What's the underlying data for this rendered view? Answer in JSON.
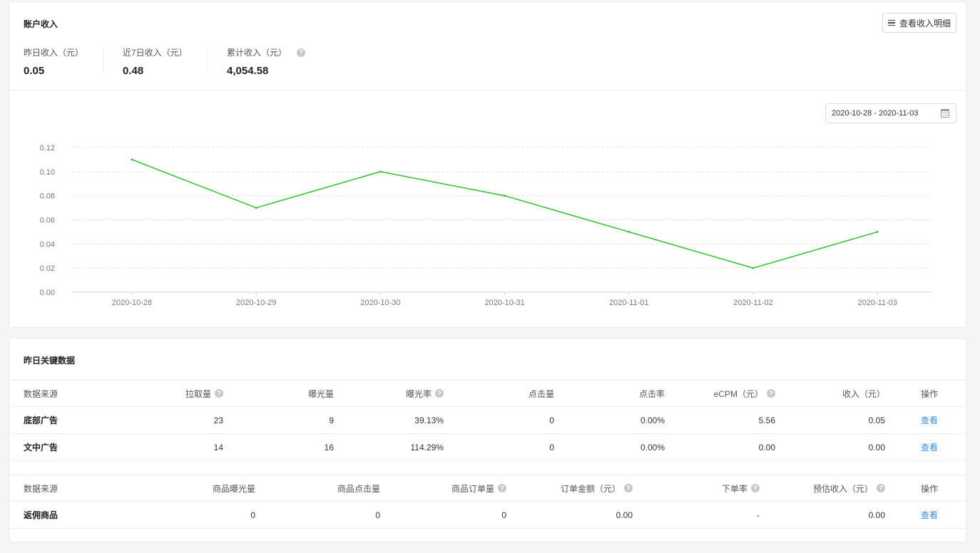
{
  "income": {
    "title": "账户收入",
    "detail_button": "查看收入明细",
    "stats": [
      {
        "label": "昨日收入（元）",
        "value": "0.05"
      },
      {
        "label": "近7日收入（元）",
        "value": "0.48"
      },
      {
        "label": "累计收入（元）",
        "value": "4,054.58"
      }
    ],
    "date_range": "2020-10-28 - 2020-11-03"
  },
  "chart_data": {
    "type": "line",
    "x": [
      "2020-10-28",
      "2020-10-29",
      "2020-10-30",
      "2020-10-31",
      "2020-11-01",
      "2020-11-02",
      "2020-11-03"
    ],
    "series": [
      {
        "values": [
          0.11,
          0.07,
          0.1,
          0.08,
          0.05,
          0.02,
          0.05
        ]
      }
    ],
    "y_ticks": [
      "0.00",
      "0.02",
      "0.04",
      "0.06",
      "0.08",
      "0.10",
      "0.12"
    ],
    "ylim": [
      0,
      0.12
    ],
    "grid": true,
    "color": "#3cc23c"
  },
  "key_data": {
    "title": "昨日关键数据",
    "ad_headers": [
      "数据来源",
      "拉取量",
      "曝光量",
      "曝光率",
      "点击量",
      "点击率",
      "eCPM（元）",
      "收入（元）",
      "操作"
    ],
    "ad_rows": [
      [
        "底部广告",
        "23",
        "9",
        "39.13%",
        "0",
        "0.00%",
        "5.56",
        "0.05",
        "查看"
      ],
      [
        "文中广告",
        "14",
        "16",
        "114.29%",
        "0",
        "0.00%",
        "0.00",
        "0.00",
        "查看"
      ]
    ],
    "goods_headers": [
      "数据来源",
      "商品曝光量",
      "商品点击量",
      "商品订单量",
      "订单金额（元）",
      "下单率",
      "预估收入（元）",
      "操作"
    ],
    "goods_rows": [
      [
        "返佣商品",
        "0",
        "0",
        "0",
        "0.00",
        "-",
        "0.00",
        "查看"
      ]
    ]
  },
  "colors": {
    "accent": "#3c8dde",
    "line": "#3cc23c"
  }
}
